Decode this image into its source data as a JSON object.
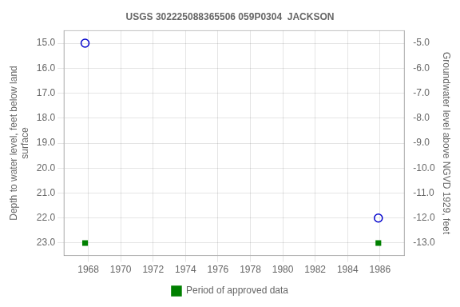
{
  "chart_data": {
    "type": "scatter",
    "title": "USGS 302225088365506 059P0304  JACKSON",
    "y_label": "Depth to water level, feet below land\nsurface",
    "y2_label": "Groundwater level above NGVD 1929, feet",
    "xlim": [
      1966.5,
      1987.5
    ],
    "xticks": [
      1968,
      1970,
      1972,
      1974,
      1976,
      1978,
      1980,
      1982,
      1984,
      1986
    ],
    "ylim": [
      23.5,
      14.5
    ],
    "yticks": [
      {
        "value": 15.0,
        "label": "15.0"
      },
      {
        "value": 16.0,
        "label": "16.0"
      },
      {
        "value": 17.0,
        "label": "17.0"
      },
      {
        "value": 18.0,
        "label": "18.0"
      },
      {
        "value": 19.0,
        "label": "19.0"
      },
      {
        "value": 20.0,
        "label": "20.0"
      },
      {
        "value": 21.0,
        "label": "21.0"
      },
      {
        "value": 22.0,
        "label": "22.0"
      },
      {
        "value": 23.0,
        "label": "23.0"
      }
    ],
    "y2lim": [
      -13.5,
      -4.5
    ],
    "y2ticks": [
      {
        "value": -5.0,
        "label": "-5.0"
      },
      {
        "value": -6.0,
        "label": "-6.0"
      },
      {
        "value": -7.0,
        "label": "-7.0"
      },
      {
        "value": -8.0,
        "label": "-8.0"
      },
      {
        "value": -9.0,
        "label": "-9.0"
      },
      {
        "value": -10.0,
        "label": "-10.0"
      },
      {
        "value": -11.0,
        "label": "-11.0"
      },
      {
        "value": -12.0,
        "label": "-12.0"
      },
      {
        "value": -13.0,
        "label": "-13.0"
      }
    ],
    "grid": true,
    "legend": "bottom",
    "series": [
      {
        "color": "#0000cc",
        "marker": "circle",
        "x": [
          1967.8,
          1985.9
        ],
        "values": [
          15.0,
          22.0
        ]
      },
      {
        "name": "Period of approved data",
        "color": "#008000",
        "marker": "square",
        "x": [
          1967.8,
          1985.9
        ],
        "values": [
          23.0,
          23.0
        ]
      }
    ]
  }
}
